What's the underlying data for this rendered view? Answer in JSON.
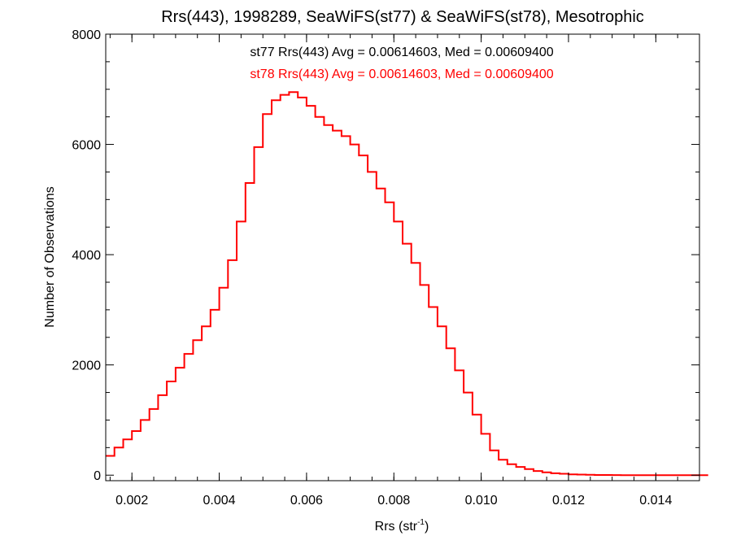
{
  "chart_data": {
    "type": "histogram",
    "title": "Rrs(443), 1998289, SeaWiFS(st77) & SeaWiFS(st78), Mesotrophic",
    "xlabel": "Rrs (str",
    "xlabel_superscript": "-1",
    "xlabel_suffix": ")",
    "ylabel": "Number of Observations",
    "xlim": [
      0.0014,
      0.015
    ],
    "ylim": [
      -100,
      8000
    ],
    "xticks": [
      0.002,
      0.004,
      0.006,
      0.008,
      0.01,
      0.012,
      0.014
    ],
    "xtick_labels": [
      "0.002",
      "0.004",
      "0.006",
      "0.008",
      "0.010",
      "0.012",
      "0.014"
    ],
    "yticks": [
      0,
      2000,
      4000,
      6000,
      8000
    ],
    "ytick_labels": [
      "0",
      "2000",
      "4000",
      "6000",
      "8000"
    ],
    "annotations": [
      {
        "text": "st77 Rrs(443) Avg = 0.00614603, Med = 0.00609400",
        "color": "#000000"
      },
      {
        "text": "st78 Rrs(443) Avg = 0.00614603, Med = 0.00609400",
        "color": "#ff0000"
      }
    ],
    "series": [
      {
        "color": "#ff0000",
        "x": [
          0.0014,
          0.0016,
          0.0018,
          0.002,
          0.0022,
          0.0024,
          0.0026,
          0.0028,
          0.003,
          0.0032,
          0.0034,
          0.0036,
          0.0038,
          0.004,
          0.0042,
          0.0044,
          0.0046,
          0.0048,
          0.005,
          0.0052,
          0.0054,
          0.0056,
          0.0058,
          0.006,
          0.0062,
          0.0064,
          0.0066,
          0.0068,
          0.007,
          0.0072,
          0.0074,
          0.0076,
          0.0078,
          0.008,
          0.0082,
          0.0084,
          0.0086,
          0.0088,
          0.009,
          0.0092,
          0.0094,
          0.0096,
          0.0098,
          0.01,
          0.0102,
          0.0104,
          0.0106,
          0.0108,
          0.011,
          0.0112,
          0.0114,
          0.0116,
          0.0118,
          0.012,
          0.0122,
          0.0124,
          0.0126,
          0.0128,
          0.013,
          0.0132,
          0.0134,
          0.0136,
          0.0138,
          0.014,
          0.0142,
          0.0144,
          0.0146,
          0.0148,
          0.015
        ],
        "y": [
          350,
          500,
          650,
          800,
          1000,
          1200,
          1450,
          1700,
          1950,
          2200,
          2450,
          2700,
          3000,
          3400,
          3900,
          4600,
          5300,
          5950,
          6550,
          6800,
          6900,
          6950,
          6850,
          6700,
          6500,
          6350,
          6250,
          6150,
          6000,
          5800,
          5500,
          5200,
          4950,
          4600,
          4200,
          3850,
          3450,
          3050,
          2700,
          2300,
          1900,
          1500,
          1100,
          750,
          450,
          280,
          200,
          150,
          110,
          75,
          50,
          35,
          25,
          15,
          10,
          6,
          4,
          3,
          2,
          1,
          1,
          0,
          0,
          0,
          0,
          0,
          0,
          0,
          0
        ]
      }
    ]
  }
}
